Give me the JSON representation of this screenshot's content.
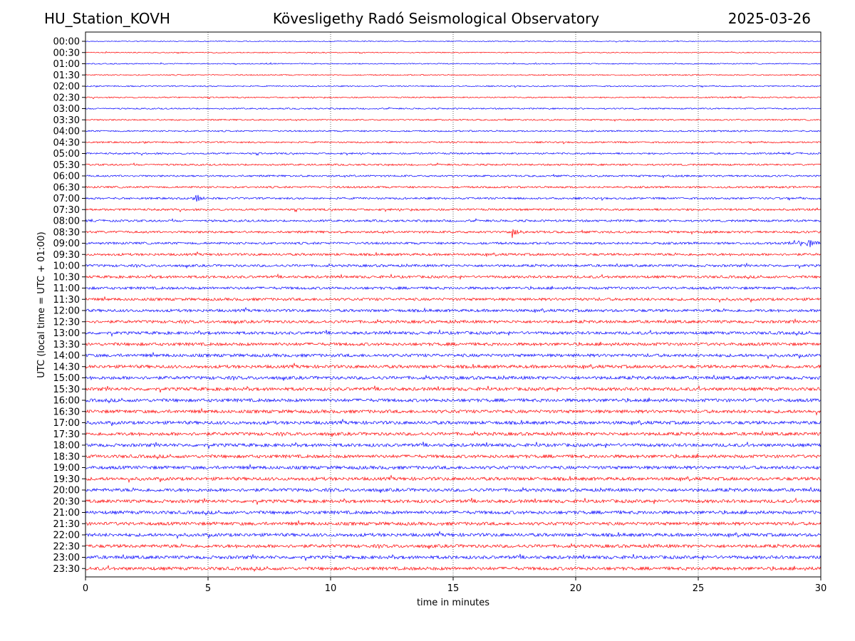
{
  "header": {
    "station": "HU_Station_KOVH",
    "observatory": "Kövesligethy Radó Seismological Observatory",
    "date": "2025-03-26"
  },
  "chart_data": {
    "type": "line",
    "title": "Kövesligethy Radó Seismological Observatory",
    "xlabel": "time in minutes",
    "ylabel": "UTC (local time = UTC + 01:00)",
    "xlim": [
      0,
      30
    ],
    "x_ticks": [
      0,
      5,
      10,
      15,
      20,
      25,
      30
    ],
    "grid": "vertical dotted at x ticks",
    "row_labels": [
      "00:00",
      "00:30",
      "01:00",
      "01:30",
      "02:00",
      "02:30",
      "03:00",
      "03:30",
      "04:00",
      "04:30",
      "05:00",
      "05:30",
      "06:00",
      "06:30",
      "07:00",
      "07:30",
      "08:00",
      "08:30",
      "09:00",
      "09:30",
      "10:00",
      "10:30",
      "11:00",
      "11:30",
      "12:00",
      "12:30",
      "13:00",
      "13:30",
      "14:00",
      "14:30",
      "15:00",
      "15:30",
      "16:00",
      "16:30",
      "17:00",
      "17:30",
      "18:00",
      "18:30",
      "19:00",
      "19:30",
      "20:00",
      "20:30",
      "21:00",
      "21:30",
      "22:00",
      "22:30",
      "23:00",
      "23:30"
    ],
    "colors": [
      "#0000ff",
      "#ff0000"
    ],
    "events": [
      {
        "row": "07:00",
        "minute": 4.5,
        "color": "#0000ff"
      },
      {
        "row": "08:30",
        "minute": 17.4,
        "color": "#ff0000"
      },
      {
        "row": "09:00",
        "minute": 29.5,
        "color": "#0000ff"
      }
    ]
  }
}
